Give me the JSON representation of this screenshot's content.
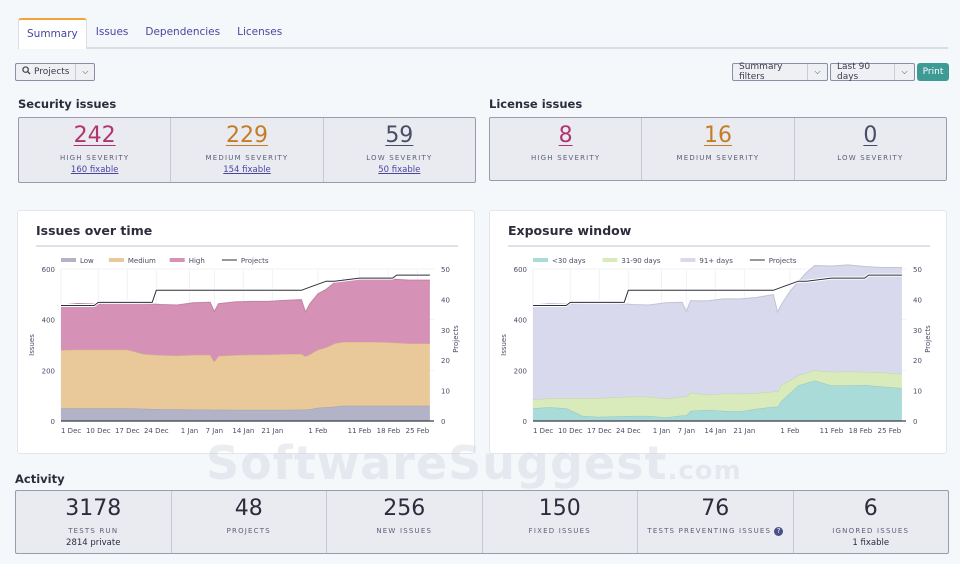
{
  "tabs": [
    {
      "label": "Summary",
      "active": true
    },
    {
      "label": "Issues"
    },
    {
      "label": "Dependencies"
    },
    {
      "label": "Licenses"
    }
  ],
  "filters": {
    "projects_label": "Projects",
    "summary_filters_label": "Summary filters",
    "date_range_label": "Last 90 days",
    "print_label": "Print"
  },
  "security": {
    "title": "Security issues",
    "items": [
      {
        "value": "242",
        "caption": "HIGH SEVERITY",
        "sub": "160 fixable",
        "color": "#b03470"
      },
      {
        "value": "229",
        "caption": "MEDIUM SEVERITY",
        "sub": "154 fixable",
        "color": "#c47c27"
      },
      {
        "value": "59",
        "caption": "LOW SEVERITY",
        "sub": "50 fixable",
        "color": "#4a4c68"
      }
    ]
  },
  "license": {
    "title": "License issues",
    "items": [
      {
        "value": "8",
        "caption": "HIGH SEVERITY",
        "color": "#b03470"
      },
      {
        "value": "16",
        "caption": "MEDIUM SEVERITY",
        "color": "#c47c27"
      },
      {
        "value": "0",
        "caption": "LOW SEVERITY",
        "color": "#4a4c68"
      }
    ]
  },
  "activity": {
    "title": "Activity",
    "items": [
      {
        "value": "3178",
        "caption": "TESTS RUN",
        "sub": "2814 private"
      },
      {
        "value": "48",
        "caption": "PROJECTS"
      },
      {
        "value": "256",
        "caption": "NEW ISSUES"
      },
      {
        "value": "150",
        "caption": "FIXED ISSUES"
      },
      {
        "value": "76",
        "caption": "TESTS PREVENTING ISSUES",
        "help_icon": "?"
      },
      {
        "value": "6",
        "caption": "IGNORED ISSUES",
        "sub": "1 fixable"
      }
    ]
  },
  "watermark": {
    "main": "SoftwareSuggest",
    "suffix": ".com"
  },
  "chart_data": [
    {
      "type": "area",
      "title": "Issues over time",
      "ylabel": "Issues",
      "y2label": "Projects",
      "ylim": [
        0,
        600
      ],
      "y2lim": [
        0,
        50
      ],
      "yticks": [
        0,
        200,
        400,
        600
      ],
      "y2ticks": [
        0,
        10,
        20,
        30,
        40,
        50
      ],
      "xticks": [
        "1 Dec",
        "10 Dec",
        "17 Dec",
        "24 Dec",
        "1 Jan",
        "7 Jan",
        "14 Jan",
        "21 Jan",
        "1 Feb",
        "11 Feb",
        "18 Feb",
        "25 Feb"
      ],
      "xtick_days": [
        0,
        9,
        16,
        23,
        31,
        37,
        44,
        51,
        62,
        72,
        79,
        86
      ],
      "legend": [
        "Low",
        "Medium",
        "High",
        "Projects"
      ],
      "legend_position": "top-left",
      "x_days": [
        0,
        4,
        8,
        12,
        16,
        20,
        24,
        28,
        32,
        36,
        37,
        38,
        42,
        46,
        50,
        54,
        58,
        59,
        60,
        62,
        64,
        66,
        68,
        72,
        76,
        80,
        84,
        89
      ],
      "stacked": true,
      "series": [
        {
          "name": "Low",
          "color": "#b3b3c7",
          "values": [
            50,
            50,
            50,
            50,
            50,
            48,
            46,
            46,
            45,
            45,
            44,
            45,
            44,
            44,
            44,
            44,
            45,
            45,
            46,
            52,
            54,
            56,
            60,
            60,
            60,
            60,
            60,
            60
          ]
        },
        {
          "name": "Medium",
          "color": "#e9c89a",
          "values": [
            230,
            232,
            232,
            232,
            232,
            216,
            214,
            212,
            216,
            216,
            190,
            212,
            216,
            218,
            218,
            220,
            220,
            210,
            216,
            230,
            236,
            250,
            252,
            252,
            252,
            250,
            246,
            246
          ]
        },
        {
          "name": "High",
          "color": "#d592b6",
          "values": [
            178,
            182,
            180,
            182,
            184,
            200,
            200,
            200,
            206,
            208,
            198,
            206,
            210,
            210,
            210,
            212,
            214,
            175,
            200,
            220,
            230,
            240,
            248,
            250,
            252,
            250,
            250,
            250
          ]
        }
      ],
      "line": {
        "name": "Projects",
        "color": "#2f2f3a",
        "x_days": [
          0,
          8,
          9,
          22,
          23,
          58,
          60,
          62,
          64,
          66,
          72,
          80,
          81,
          89
        ],
        "values": [
          38,
          38,
          39,
          39,
          43,
          43,
          44,
          45,
          46,
          46,
          47,
          47,
          48,
          48
        ]
      }
    },
    {
      "type": "area",
      "title": "Exposure window",
      "ylabel": "Issues",
      "y2label": "Projects",
      "ylim": [
        0,
        600
      ],
      "y2lim": [
        0,
        50
      ],
      "yticks": [
        0,
        200,
        400,
        600
      ],
      "y2ticks": [
        0,
        10,
        20,
        30,
        40,
        50
      ],
      "xticks": [
        "1 Dec",
        "10 Dec",
        "17 Dec",
        "24 Dec",
        "1 Jan",
        "7 Jan",
        "14 Jan",
        "21 Jan",
        "1 Feb",
        "11 Feb",
        "18 Feb",
        "25 Feb"
      ],
      "xtick_days": [
        0,
        9,
        16,
        23,
        31,
        37,
        44,
        51,
        62,
        72,
        79,
        86
      ],
      "legend": [
        "<30 days",
        "31-90 days",
        "91+ days",
        "Projects"
      ],
      "legend_position": "top-left",
      "x_days": [
        0,
        4,
        8,
        12,
        16,
        20,
        24,
        28,
        32,
        36,
        37,
        38,
        42,
        46,
        50,
        54,
        58,
        59,
        60,
        62,
        64,
        66,
        68,
        72,
        76,
        80,
        84,
        89
      ],
      "stacked": true,
      "series": [
        {
          "name": "<30 days",
          "color": "#a9dbd8",
          "values": [
            50,
            54,
            50,
            20,
            16,
            18,
            20,
            20,
            14,
            22,
            22,
            40,
            44,
            40,
            38,
            48,
            56,
            56,
            80,
            110,
            140,
            150,
            160,
            140,
            140,
            142,
            136,
            130
          ]
        },
        {
          "name": "31-90 days",
          "color": "#d9ebbb",
          "values": [
            34,
            36,
            40,
            70,
            74,
            76,
            76,
            76,
            74,
            74,
            74,
            72,
            60,
            68,
            70,
            62,
            60,
            60,
            64,
            50,
            40,
            40,
            40,
            54,
            56,
            52,
            56,
            56
          ]
        },
        {
          "name": "91+ days",
          "color": "#d8d9ec",
          "values": [
            374,
            374,
            372,
            374,
            380,
            370,
            364,
            362,
            379,
            373,
            336,
            363,
            370,
            374,
            374,
            378,
            383,
            314,
            318,
            352,
            370,
            396,
            414,
            418,
            420,
            416,
            414,
            420
          ]
        }
      ],
      "line": {
        "name": "Projects",
        "color": "#2f2f3a",
        "x_days": [
          0,
          8,
          9,
          22,
          23,
          58,
          60,
          62,
          64,
          66,
          72,
          80,
          81,
          89
        ],
        "values": [
          38,
          38,
          39,
          39,
          43,
          43,
          44,
          45,
          46,
          46,
          47,
          47,
          48,
          48
        ]
      }
    }
  ]
}
